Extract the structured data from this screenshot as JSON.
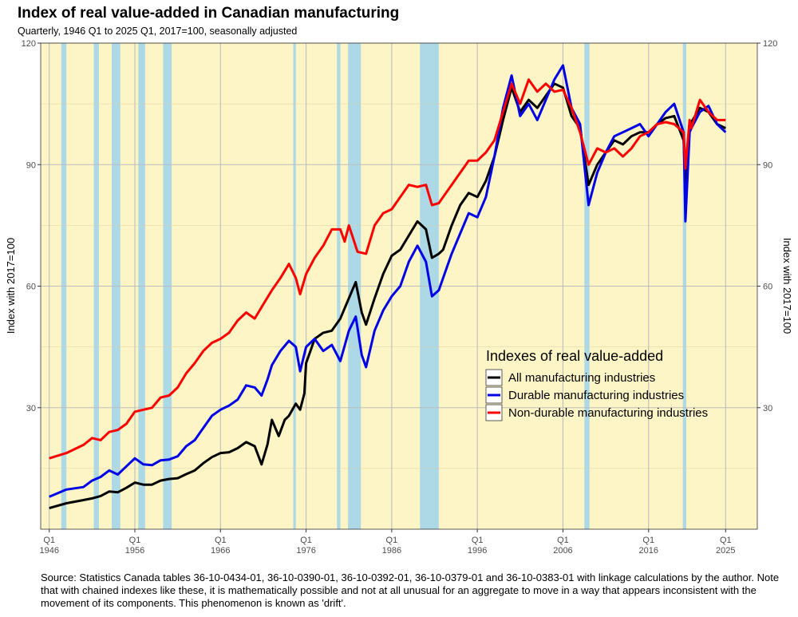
{
  "chart_data": {
    "type": "line",
    "title": "Index of real value-added in Canadian manufacturing",
    "subtitle": "Quarterly, 1946 Q1 to 2025 Q1, 2017=100, seasonally adjusted",
    "ylabel_left": "Index with 2017=100",
    "ylabel_right": "Index with 2017=100",
    "xlim": [
      1945.0,
      2028.7
    ],
    "ylim": [
      0,
      120
    ],
    "y_ticks": [
      30,
      60,
      90,
      120
    ],
    "x_ticks": [
      {
        "value": 1946,
        "q": "Q1",
        "year": "1946"
      },
      {
        "value": 1956,
        "q": "Q1",
        "year": "1956"
      },
      {
        "value": 1966,
        "q": "Q1",
        "year": "1966"
      },
      {
        "value": 1976,
        "q": "Q1",
        "year": "1976"
      },
      {
        "value": 1986,
        "q": "Q1",
        "year": "1986"
      },
      {
        "value": 1996,
        "q": "Q1",
        "year": "1996"
      },
      {
        "value": 2006,
        "q": "Q1",
        "year": "2006"
      },
      {
        "value": 2016,
        "q": "Q1",
        "year": "2016"
      },
      {
        "value": 2025,
        "q": "Q1",
        "year": "2025"
      }
    ],
    "grid": true,
    "background_color": "#fdf5c5",
    "recession_color": "#add8e6",
    "recessions": [
      [
        1947.4,
        1948.0
      ],
      [
        1951.2,
        1951.8
      ],
      [
        1953.3,
        1954.3
      ],
      [
        1956.4,
        1957.2
      ],
      [
        1959.3,
        1960.3
      ],
      [
        1974.5,
        1974.8
      ],
      [
        1979.6,
        1980.0
      ],
      [
        1980.9,
        1982.4
      ],
      [
        1989.3,
        1991.5
      ],
      [
        2008.5,
        2009.1
      ],
      [
        2020.0,
        2020.4
      ]
    ],
    "legend": {
      "title": "Indexes of real value-added",
      "position": "right-center"
    },
    "series": [
      {
        "name": "All manufacturing industries",
        "color": "#000000",
        "points": [
          [
            1946,
            5.2
          ],
          [
            1948,
            6.4
          ],
          [
            1950,
            7.2
          ],
          [
            1951,
            7.6
          ],
          [
            1952,
            8.2
          ],
          [
            1953,
            9.3
          ],
          [
            1954,
            9.1
          ],
          [
            1955,
            10.2
          ],
          [
            1956,
            11.5
          ],
          [
            1957,
            11.0
          ],
          [
            1958,
            11.0
          ],
          [
            1959,
            12.0
          ],
          [
            1960,
            12.4
          ],
          [
            1961,
            12.6
          ],
          [
            1962,
            13.6
          ],
          [
            1963,
            14.5
          ],
          [
            1964,
            16.3
          ],
          [
            1965,
            17.8
          ],
          [
            1966,
            18.8
          ],
          [
            1967,
            19.0
          ],
          [
            1968,
            20.0
          ],
          [
            1969,
            21.5
          ],
          [
            1970,
            20.5
          ],
          [
            1970.8,
            16.0
          ],
          [
            1971.5,
            21.0
          ],
          [
            1972,
            27.0
          ],
          [
            1972.8,
            23.0
          ],
          [
            1973.5,
            27.0
          ],
          [
            1974,
            28.0
          ],
          [
            1974.8,
            31.0
          ],
          [
            1975.3,
            29.5
          ],
          [
            1975.8,
            33.5
          ],
          [
            1976,
            41.0
          ],
          [
            1976.5,
            44.0
          ],
          [
            1977,
            47.0
          ],
          [
            1978,
            48.5
          ],
          [
            1979,
            49.0
          ],
          [
            1980,
            52.0
          ],
          [
            1981,
            57.0
          ],
          [
            1981.8,
            61.0
          ],
          [
            1982.5,
            53.5
          ],
          [
            1983,
            50.5
          ],
          [
            1984,
            57.0
          ],
          [
            1985,
            63.0
          ],
          [
            1986,
            67.5
          ],
          [
            1987,
            69.0
          ],
          [
            1988,
            72.5
          ],
          [
            1989,
            76.0
          ],
          [
            1990,
            74.0
          ],
          [
            1990.7,
            67.0
          ],
          [
            1991.5,
            68.0
          ],
          [
            1992,
            69.0
          ],
          [
            1993,
            75.0
          ],
          [
            1994,
            80.0
          ],
          [
            1995,
            83.0
          ],
          [
            1996,
            82.0
          ],
          [
            1997,
            86.0
          ],
          [
            1998,
            92.0
          ],
          [
            1999,
            101.0
          ],
          [
            2000,
            109.0
          ],
          [
            2001,
            103.0
          ],
          [
            2002,
            106.0
          ],
          [
            2003,
            104.0
          ],
          [
            2004,
            107.0
          ],
          [
            2005,
            110.0
          ],
          [
            2006,
            109.0
          ],
          [
            2007,
            102.0
          ],
          [
            2008,
            99.0
          ],
          [
            2009,
            85.0
          ],
          [
            2010,
            90.0
          ],
          [
            2011,
            93.0
          ],
          [
            2012,
            96.0
          ],
          [
            2013,
            95.0
          ],
          [
            2014,
            97.0
          ],
          [
            2015,
            98.0
          ],
          [
            2016,
            98.0
          ],
          [
            2017,
            100.0
          ],
          [
            2018,
            101.5
          ],
          [
            2019,
            102.0
          ],
          [
            2020.1,
            96.0
          ],
          [
            2020.3,
            85.0
          ],
          [
            2020.8,
            99.0
          ],
          [
            2021,
            100.5
          ],
          [
            2022,
            104.0
          ],
          [
            2023,
            103.0
          ],
          [
            2024,
            100.0
          ],
          [
            2025,
            99.0
          ]
        ]
      },
      {
        "name": "Durable manufacturing industries",
        "color": "#0000e6",
        "points": [
          [
            1946,
            8.0
          ],
          [
            1948,
            9.8
          ],
          [
            1950,
            10.4
          ],
          [
            1951,
            12.0
          ],
          [
            1952,
            12.9
          ],
          [
            1953,
            14.5
          ],
          [
            1954,
            13.5
          ],
          [
            1955,
            15.5
          ],
          [
            1956,
            17.5
          ],
          [
            1957,
            16.0
          ],
          [
            1958,
            15.8
          ],
          [
            1959,
            17.0
          ],
          [
            1960,
            17.2
          ],
          [
            1961,
            18.0
          ],
          [
            1962,
            20.5
          ],
          [
            1963,
            22.0
          ],
          [
            1964,
            25.0
          ],
          [
            1965,
            28.0
          ],
          [
            1966,
            29.5
          ],
          [
            1967,
            30.5
          ],
          [
            1968,
            32.0
          ],
          [
            1969,
            35.5
          ],
          [
            1970,
            35.0
          ],
          [
            1970.8,
            33.0
          ],
          [
            1971.5,
            37.0
          ],
          [
            1972,
            40.5
          ],
          [
            1973,
            44.0
          ],
          [
            1974,
            46.5
          ],
          [
            1974.8,
            45.0
          ],
          [
            1975.3,
            39.0
          ],
          [
            1976,
            45.0
          ],
          [
            1977,
            47.0
          ],
          [
            1978,
            44.0
          ],
          [
            1979,
            45.5
          ],
          [
            1980,
            41.5
          ],
          [
            1981,
            49.0
          ],
          [
            1981.8,
            52.5
          ],
          [
            1982.5,
            43.0
          ],
          [
            1983,
            40.0
          ],
          [
            1984,
            49.0
          ],
          [
            1985,
            54.0
          ],
          [
            1986,
            57.5
          ],
          [
            1987,
            60.0
          ],
          [
            1988,
            66.0
          ],
          [
            1989,
            70.0
          ],
          [
            1990,
            66.0
          ],
          [
            1990.7,
            57.5
          ],
          [
            1991.5,
            59.0
          ],
          [
            1992,
            62.0
          ],
          [
            1993,
            68.0
          ],
          [
            1994,
            73.0
          ],
          [
            1995,
            78.0
          ],
          [
            1996,
            77.0
          ],
          [
            1997,
            82.0
          ],
          [
            1998,
            92.0
          ],
          [
            1999,
            104.0
          ],
          [
            2000,
            112.0
          ],
          [
            2001,
            102.0
          ],
          [
            2002,
            105.0
          ],
          [
            2003,
            101.0
          ],
          [
            2004,
            106.0
          ],
          [
            2005,
            111.0
          ],
          [
            2006,
            114.5
          ],
          [
            2007,
            104.0
          ],
          [
            2008,
            100.0
          ],
          [
            2009,
            80.0
          ],
          [
            2010,
            88.0
          ],
          [
            2011,
            93.0
          ],
          [
            2012,
            97.0
          ],
          [
            2013,
            98.0
          ],
          [
            2014,
            99.0
          ],
          [
            2015,
            100.0
          ],
          [
            2016,
            97.0
          ],
          [
            2017,
            100.0
          ],
          [
            2018,
            103.0
          ],
          [
            2019,
            105.0
          ],
          [
            2020.1,
            98.0
          ],
          [
            2020.3,
            76.0
          ],
          [
            2020.8,
            98.0
          ],
          [
            2021,
            99.0
          ],
          [
            2022,
            103.0
          ],
          [
            2023,
            104.5
          ],
          [
            2024,
            100.0
          ],
          [
            2025,
            98.0
          ]
        ]
      },
      {
        "name": "Non-durable manufacturing industries",
        "color": "#ff0000",
        "points": [
          [
            1946,
            17.5
          ],
          [
            1948,
            18.8
          ],
          [
            1950,
            20.8
          ],
          [
            1951,
            22.5
          ],
          [
            1952,
            22.0
          ],
          [
            1953,
            24.0
          ],
          [
            1954,
            24.5
          ],
          [
            1955,
            26.0
          ],
          [
            1956,
            29.0
          ],
          [
            1957,
            29.5
          ],
          [
            1958,
            30.0
          ],
          [
            1959,
            32.5
          ],
          [
            1960,
            33.0
          ],
          [
            1961,
            35.0
          ],
          [
            1962,
            38.5
          ],
          [
            1963,
            41.0
          ],
          [
            1964,
            44.0
          ],
          [
            1965,
            46.0
          ],
          [
            1966,
            47.0
          ],
          [
            1967,
            48.5
          ],
          [
            1968,
            51.5
          ],
          [
            1969,
            53.5
          ],
          [
            1970,
            52.0
          ],
          [
            1971,
            55.5
          ],
          [
            1972,
            59.0
          ],
          [
            1973,
            62.0
          ],
          [
            1974,
            65.5
          ],
          [
            1974.8,
            62.0
          ],
          [
            1975.3,
            58.0
          ],
          [
            1976,
            63.0
          ],
          [
            1977,
            67.0
          ],
          [
            1978,
            70.0
          ],
          [
            1979,
            74.0
          ],
          [
            1980,
            74.0
          ],
          [
            1980.5,
            71.0
          ],
          [
            1981,
            75.0
          ],
          [
            1982,
            68.5
          ],
          [
            1983,
            68.0
          ],
          [
            1984,
            75.0
          ],
          [
            1985,
            78.0
          ],
          [
            1986,
            79.0
          ],
          [
            1987,
            82.0
          ],
          [
            1988,
            85.0
          ],
          [
            1989,
            84.5
          ],
          [
            1990,
            85.0
          ],
          [
            1990.7,
            80.0
          ],
          [
            1991.5,
            80.5
          ],
          [
            1992,
            82.0
          ],
          [
            1993,
            85.0
          ],
          [
            1994,
            88.0
          ],
          [
            1995,
            91.0
          ],
          [
            1996,
            91.0
          ],
          [
            1997,
            93.0
          ],
          [
            1998,
            96.0
          ],
          [
            1999,
            103.0
          ],
          [
            2000,
            110.0
          ],
          [
            2001,
            105.0
          ],
          [
            2002,
            111.0
          ],
          [
            2003,
            108.0
          ],
          [
            2004,
            110.0
          ],
          [
            2005,
            108.0
          ],
          [
            2006,
            108.5
          ],
          [
            2007,
            104.0
          ],
          [
            2008,
            98.0
          ],
          [
            2009,
            90.0
          ],
          [
            2010,
            94.0
          ],
          [
            2011,
            93.0
          ],
          [
            2012,
            94.0
          ],
          [
            2013,
            92.0
          ],
          [
            2014,
            94.0
          ],
          [
            2015,
            97.0
          ],
          [
            2016,
            98.0
          ],
          [
            2017,
            100.0
          ],
          [
            2018,
            100.5
          ],
          [
            2019,
            100.0
          ],
          [
            2020.1,
            98.0
          ],
          [
            2020.3,
            89.0
          ],
          [
            2020.8,
            101.0
          ],
          [
            2021,
            99.0
          ],
          [
            2022,
            106.0
          ],
          [
            2023,
            103.0
          ],
          [
            2024,
            101.0
          ],
          [
            2025,
            101.0
          ]
        ]
      }
    ]
  },
  "source_note": "Source: Statistics Canada tables 36-10-0434-01, 36-10-0390-01, 36-10-0392-01, 36-10-0379-01 and 36-10-0383-01 with linkage calculations by the author. Note that with chained indexes like these, it is mathematically possible and not at all unusual for an aggregate to move in a way that appears inconsistent with the movement of its components. This phenomenon is known as 'drift'."
}
